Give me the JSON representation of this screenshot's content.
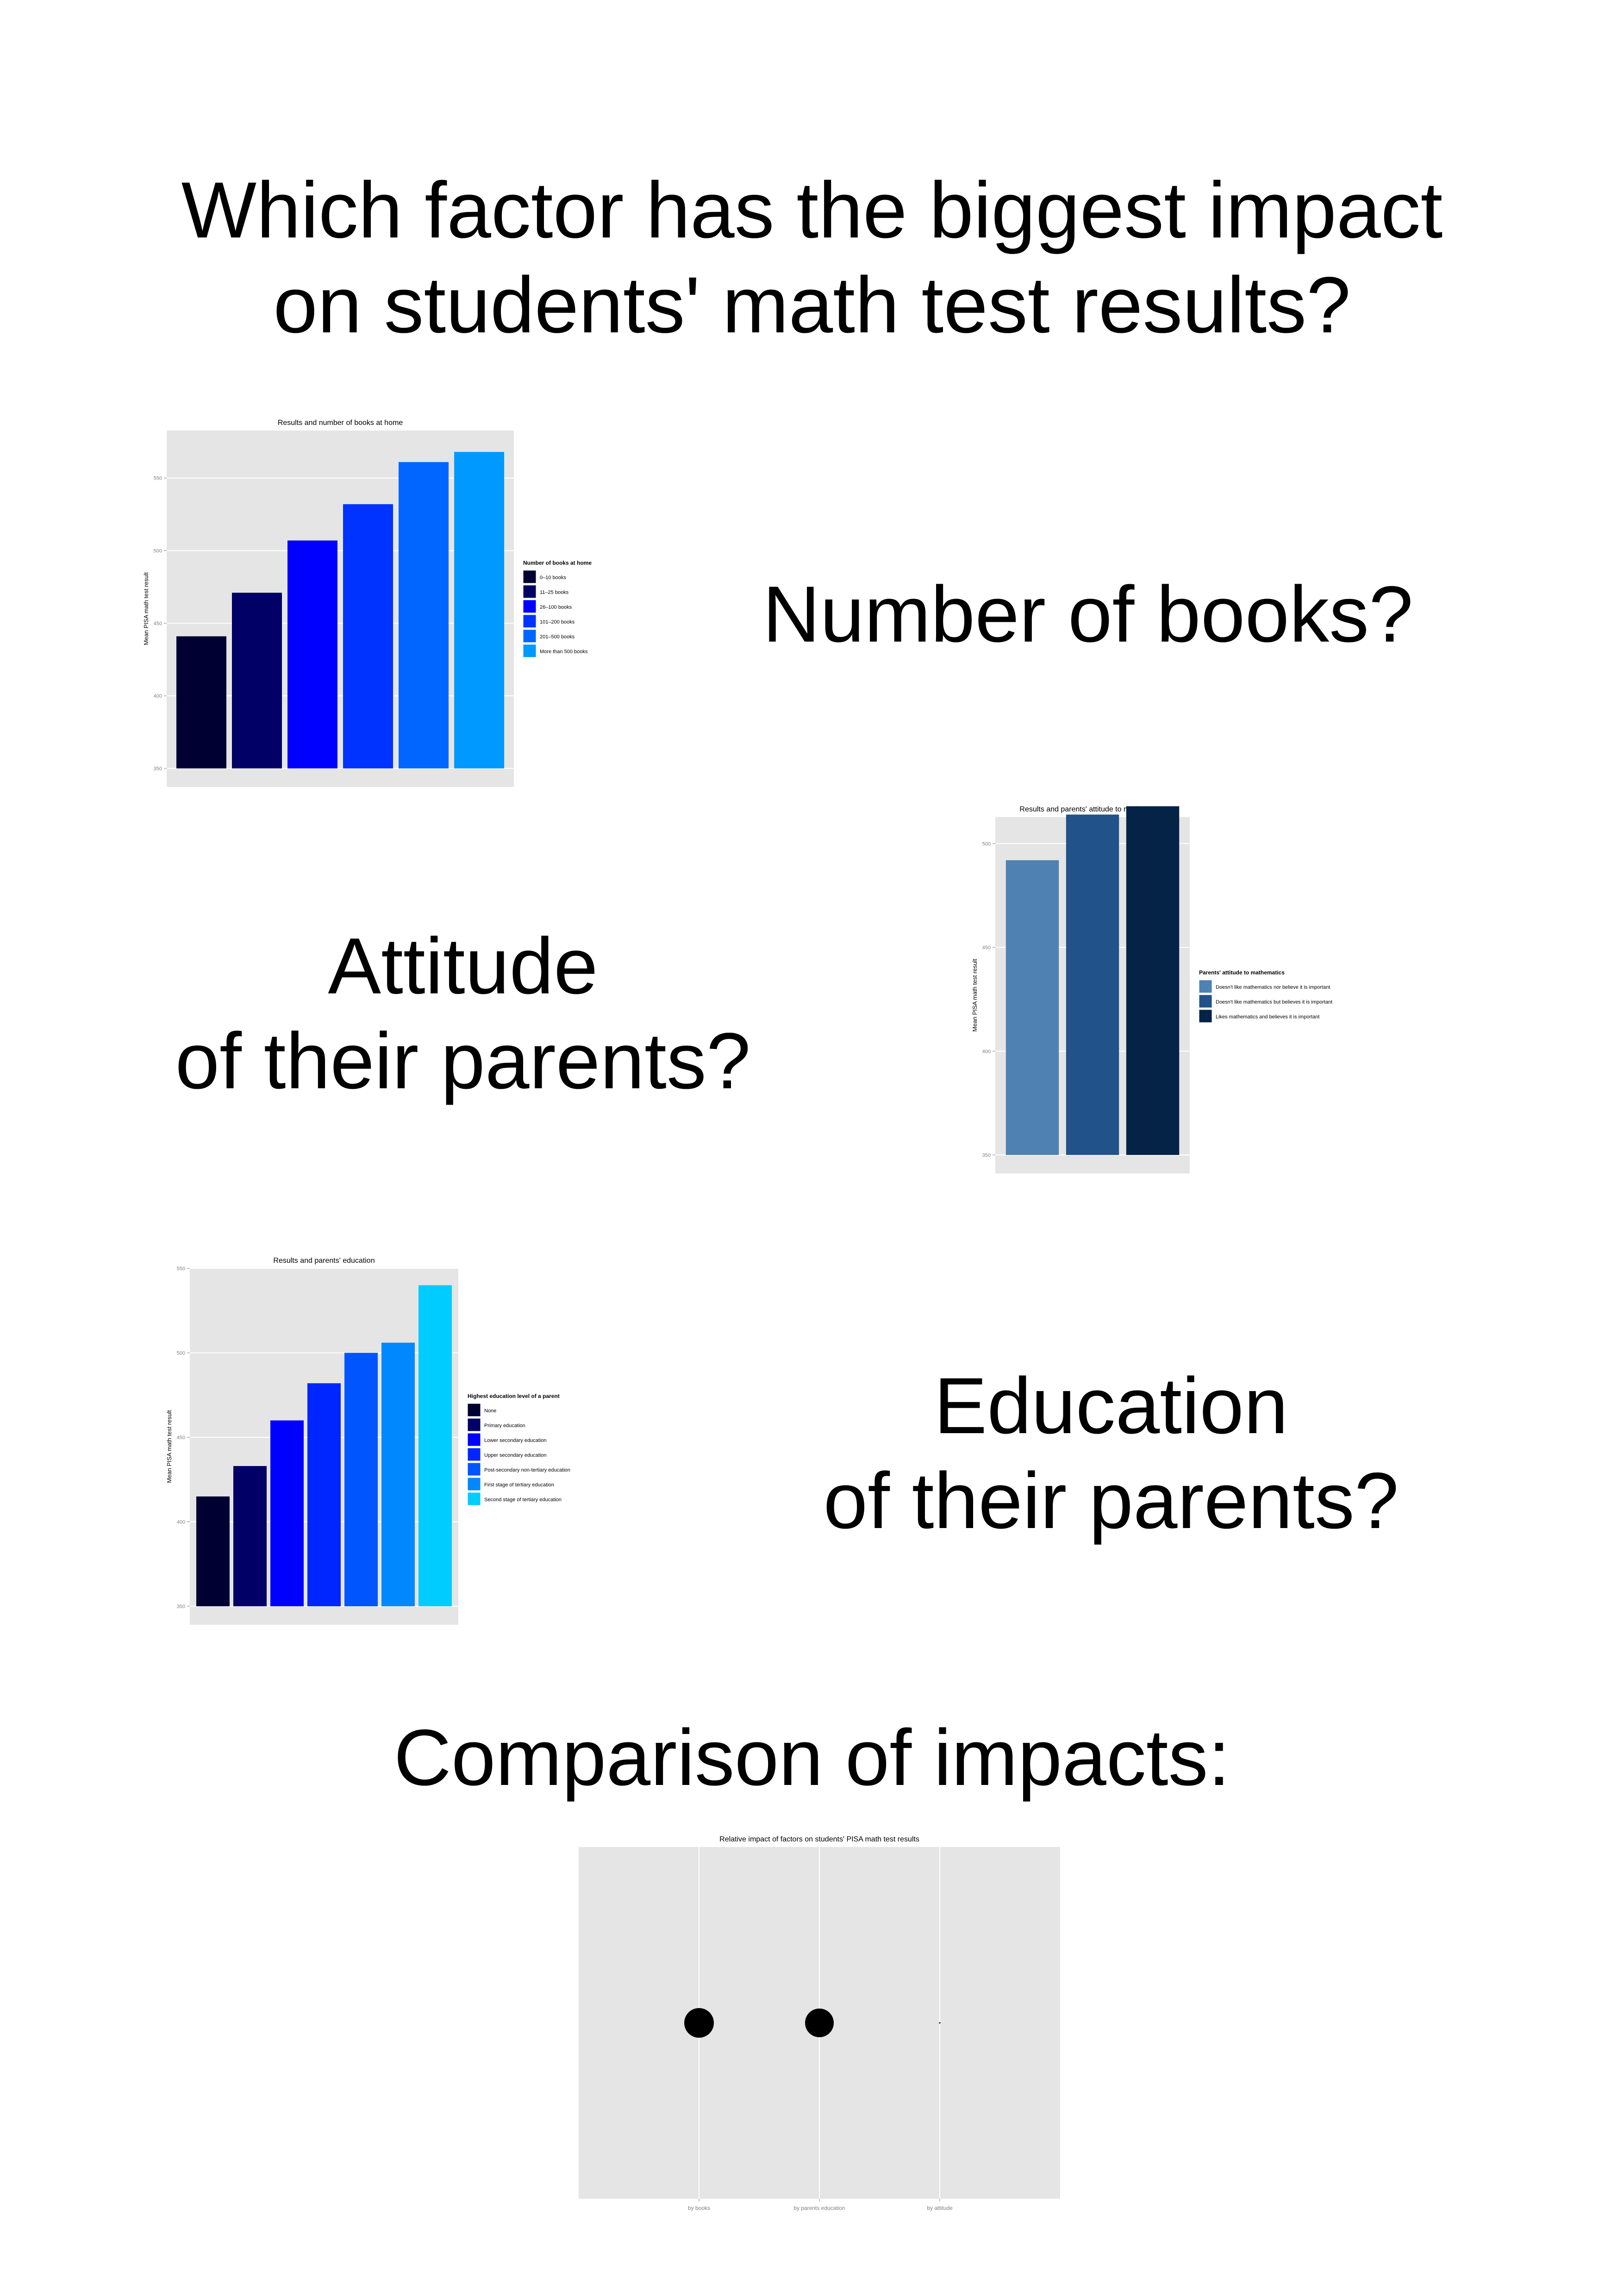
{
  "title": "Which factor has the biggest impact\non students' math test results?",
  "questions": {
    "books": "Number of books?",
    "attitude": "Attitude\nof their parents?",
    "education": "Education\nof their parents?",
    "comparison": "Comparison of impacts:"
  },
  "colors": {
    "panel_bg": "#e5e5e5",
    "grid": "#ffffff",
    "tick_text": "#7f7f7f",
    "point": "#000000"
  },
  "chart_data": [
    {
      "type": "bar",
      "title": "Results and number of books at home",
      "ylabel": "Mean PISA math test result",
      "ylim": [
        350,
        570
      ],
      "yticks": [
        350,
        400,
        450,
        500,
        550
      ],
      "grid": true,
      "legend_position": "right",
      "legend_title": "Number of books at home",
      "categories": [
        "0–10 books",
        "11–25 books",
        "26–100 books",
        "101–200 books",
        "201–500 books",
        "More than 500 books"
      ],
      "values": [
        441,
        471,
        507,
        532,
        561,
        568
      ],
      "colors": [
        "#000033",
        "#000066",
        "#0000ff",
        "#0033ff",
        "#0066ff",
        "#0099ff"
      ]
    },
    {
      "type": "bar",
      "title": "Results and parents' attitude to mathematics",
      "ylabel": "Mean PISA math test result",
      "ylim": [
        350,
        505
      ],
      "yticks": [
        350,
        400,
        450,
        500
      ],
      "grid": true,
      "legend_position": "right",
      "legend_title": "Parents' attitude to mathematics",
      "categories": [
        "Doesn't like mathematics nor believe it is important",
        "Doesn't like mathematics but believes it is important",
        "Likes mathematics and believes it is important"
      ],
      "values": [
        492,
        514,
        518
      ],
      "colors": [
        "#4f81b3",
        "#21538a",
        "#042347"
      ]
    },
    {
      "type": "bar",
      "title": "Results and parents' education",
      "ylabel": "Mean PISA math test result",
      "ylim": [
        350,
        550
      ],
      "yticks": [
        350,
        400,
        450,
        500,
        550
      ],
      "grid": true,
      "legend_position": "right",
      "legend_title": "Highest education level of a parent",
      "categories": [
        "None",
        "Primary education",
        "Lower secondary education",
        "Upper secondary education",
        "Post-secondary non-tertiary education",
        "First stage of tertiary education",
        "Second stage of tertiary education"
      ],
      "values": [
        415,
        433,
        460,
        482,
        500,
        506,
        540
      ],
      "colors": [
        "#000033",
        "#000066",
        "#0000ff",
        "#0026ff",
        "#0055ff",
        "#0088ff",
        "#00ccff"
      ]
    },
    {
      "type": "scatter",
      "title": "Relative impact of factors on students' PISA math test results",
      "categories": [
        "by books",
        "by parents education",
        "by attitude"
      ],
      "values": [
        127,
        125,
        26
      ],
      "grid": true
    }
  ]
}
